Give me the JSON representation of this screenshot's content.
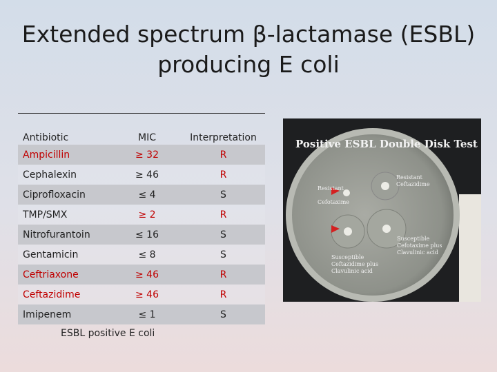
{
  "title": "Extended spectrum β-lactamase (ESBL) producing E coli",
  "table": {
    "header": [
      "Antibiotic",
      "MIC",
      "Interpretation"
    ],
    "rows": [
      [
        "Ampicillin",
        "≥ 32",
        "R"
      ],
      [
        "Cephalexin",
        "≥ 46",
        "R"
      ],
      [
        "Ciprofloxacin",
        "≤ 4",
        "S"
      ],
      [
        "TMP/SMX",
        "≥ 2",
        "R"
      ],
      [
        "Nitrofurantoin",
        "≤ 16",
        "S"
      ],
      [
        "Gentamicin",
        "≤ 8",
        "S"
      ],
      [
        "Ceftriaxone",
        "≥ 46",
        "R"
      ],
      [
        "Ceftazidime",
        "≥ 46",
        "R"
      ],
      [
        "Imipenem",
        "≤ 1",
        "S"
      ]
    ],
    "caption": "ESBL positive E coli"
  },
  "photo": {
    "title": "Positive ESBL Double Disk Test",
    "labels": [
      "Resistant",
      "Cefotaxime",
      "Resistant",
      "Ceftazidime",
      "Susceptible",
      "Cefotaxime plus",
      "Clavulinic acid",
      "Susceptible",
      "Ceftazidime plus",
      "Clavulinic acid"
    ]
  }
}
